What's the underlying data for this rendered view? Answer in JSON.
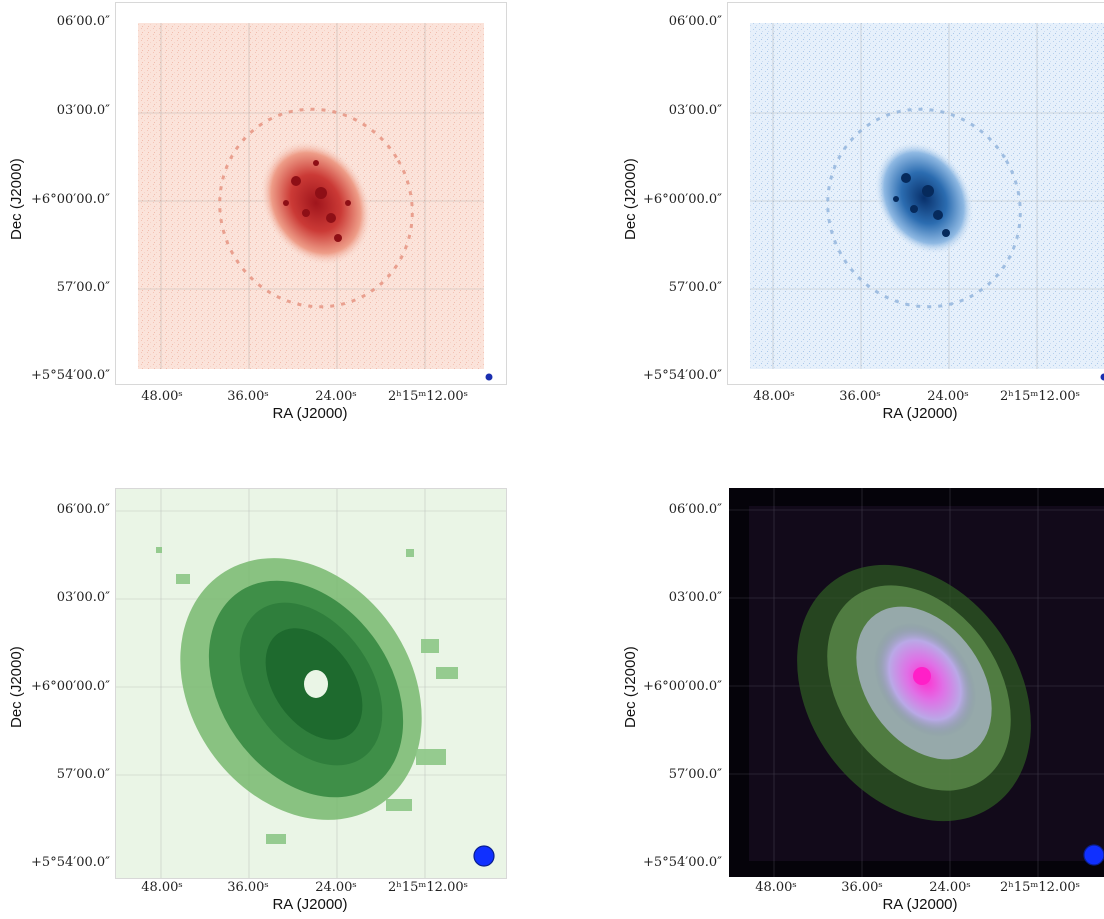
{
  "axes": {
    "xlabel": "RA (J2000)",
    "ylabel": "Dec (J2000)",
    "xticks": [
      "48.00ˢ",
      "36.00ˢ",
      "24.00ˢ",
      "2ʰ15ᵐ12.00ˢ"
    ],
    "yticks": [
      "06′00.0″",
      "03′00.0″",
      "+6°00′00.0″",
      "57′00.0″",
      "+5°54′00.0″"
    ]
  },
  "panels": [
    {
      "id": "top-left",
      "colormap": "reds",
      "background": "#fbe3da",
      "beam_color": "#1a2fb0",
      "beam_size": "small"
    },
    {
      "id": "top-right",
      "colormap": "blues",
      "background": "#e6f0fb",
      "beam_color": "#1a2fb0",
      "beam_size": "small"
    },
    {
      "id": "bottom-left",
      "colormap": "greens",
      "background": "#eaf5e6",
      "beam_color": "#1030ff",
      "beam_size": "large"
    },
    {
      "id": "bottom-right",
      "colormap": "rgb-composite",
      "background": "#000000",
      "beam_color": "#1030ff",
      "beam_size": "large"
    }
  ]
}
